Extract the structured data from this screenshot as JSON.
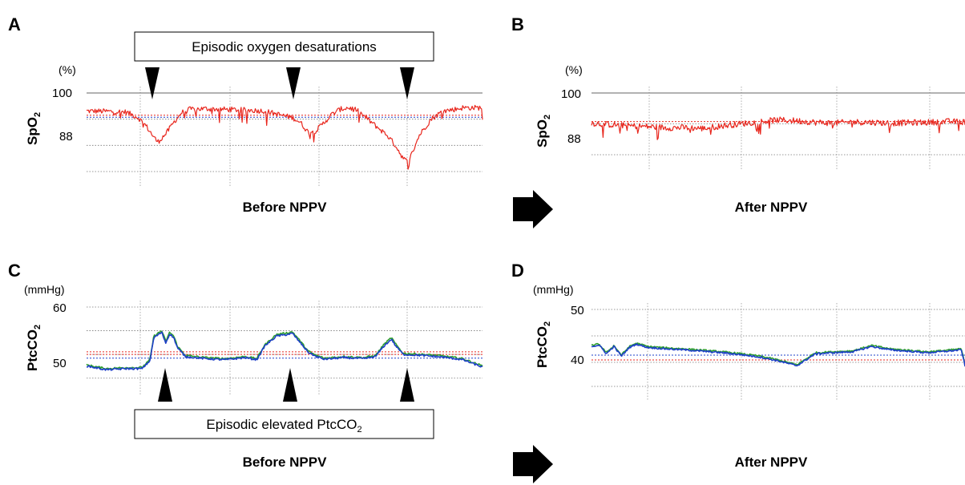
{
  "annotations": {
    "top_box": "Episodic oxygen desaturations",
    "bottom_box_main": "Episodic elevated PtcCO",
    "bottom_box_sub": "2"
  },
  "colors": {
    "spo2": "#e8261d",
    "ptcco2_main": "#2e9e2e",
    "ptcco2_secondary": "#1d3fc8",
    "red_ref": "#e8261d",
    "blue_ref": "#1d3fc8",
    "grid": "#888888"
  },
  "chart_data": [
    {
      "panel": "A",
      "type": "line",
      "caption": "Before NPPV",
      "unit": "(%)",
      "ylabel_main": "SpO",
      "ylabel_sub": "2",
      "yticks": [
        "100",
        "88"
      ],
      "ylim": [
        76,
        100
      ],
      "dotted_levels": [
        100,
        92,
        84,
        76
      ],
      "ref_levels": [
        {
          "color": "red",
          "value": 93.2
        },
        {
          "color": "blue",
          "value": 92.6
        }
      ],
      "arrowheads": [
        "down",
        "down",
        "down"
      ],
      "series": [
        {
          "color": "spo2",
          "x": [
            0,
            0.05,
            0.1,
            0.13,
            0.15,
            0.17,
            0.18,
            0.2,
            0.22,
            0.24,
            0.26,
            0.3,
            0.35,
            0.4,
            0.45,
            0.5,
            0.52,
            0.54,
            0.56,
            0.58,
            0.6,
            0.62,
            0.64,
            0.66,
            0.68,
            0.7,
            0.73,
            0.76,
            0.78,
            0.8,
            0.81,
            0.82,
            0.84,
            0.87,
            0.9,
            0.93,
            0.95,
            1
          ],
          "y": [
            94.5,
            94.4,
            94.2,
            92.5,
            90,
            86.5,
            85,
            87.5,
            91,
            94,
            95,
            95.2,
            95,
            94.8,
            94.5,
            93,
            92.5,
            91,
            88,
            88.5,
            91,
            93.5,
            95,
            95.5,
            95,
            93,
            90,
            87,
            84,
            80,
            79,
            81,
            87,
            92,
            94.5,
            95,
            95.5,
            95.5
          ]
        }
      ]
    },
    {
      "panel": "B",
      "type": "line",
      "caption": "After NPPV",
      "unit": "(%)",
      "ylabel_main": "SpO",
      "ylabel_sub": "2",
      "yticks": [
        "100",
        "88"
      ],
      "ylim": [
        84,
        100
      ],
      "dotted_levels": [
        100,
        92,
        84
      ],
      "ref_levels": [
        {
          "color": "red",
          "value": 92.6
        }
      ],
      "series": [
        {
          "color": "spo2",
          "x": [
            0,
            0.05,
            0.1,
            0.15,
            0.2,
            0.25,
            0.3,
            0.35,
            0.4,
            0.45,
            0.5,
            0.55,
            0.6,
            0.65,
            0.7,
            0.75,
            0.8,
            0.85,
            0.9,
            0.95,
            1
          ],
          "y": [
            92.2,
            91.8,
            91.5,
            91.3,
            91,
            91,
            90.8,
            91.5,
            92,
            92.6,
            93,
            92.8,
            92.4,
            92.2,
            92.5,
            92.4,
            92.2,
            92.3,
            92.4,
            92.6,
            92.5
          ]
        }
      ]
    },
    {
      "panel": "C",
      "type": "line",
      "caption": "Before NPPV",
      "unit": "(mmHg)",
      "ylabel_main": "PtcCO",
      "ylabel_sub": "2",
      "yticks": [
        "60",
        "50"
      ],
      "ylim": [
        46,
        60
      ],
      "dotted_levels": [
        60,
        55.5,
        51,
        46.5
      ],
      "ref_levels": [
        {
          "color": "red",
          "value": 51.5
        },
        {
          "color": "red",
          "value": 51
        },
        {
          "color": "blue",
          "value": 50.3
        }
      ],
      "arrowheads": [
        "up",
        "up",
        "up"
      ],
      "series": [
        {
          "name": "",
          "color": "ptcco2_main",
          "x": [
            0,
            0.05,
            0.1,
            0.14,
            0.16,
            0.17,
            0.19,
            0.2,
            0.21,
            0.22,
            0.23,
            0.25,
            0.3,
            0.35,
            0.4,
            0.43,
            0.45,
            0.48,
            0.5,
            0.52,
            0.54,
            0.56,
            0.58,
            0.6,
            0.65,
            0.7,
            0.73,
            0.75,
            0.77,
            0.78,
            0.8,
            0.85,
            0.9,
            0.95,
            1
          ],
          "y": [
            49,
            48.3,
            48.5,
            48.5,
            50,
            54.5,
            55.5,
            53.5,
            55.2,
            54.5,
            52.5,
            50.8,
            50.4,
            50.2,
            50.6,
            50.2,
            52.8,
            54.8,
            55,
            55.3,
            53.5,
            51.6,
            50.8,
            50.3,
            50.6,
            50.4,
            50.8,
            52.8,
            54.2,
            53,
            51.2,
            51,
            50.7,
            50.2,
            48.8
          ]
        },
        {
          "name": "",
          "color": "ptcco2_secondary",
          "x": [
            0,
            0.05,
            0.1,
            0.14,
            0.16,
            0.17,
            0.19,
            0.2,
            0.21,
            0.22,
            0.23,
            0.25,
            0.3,
            0.35,
            0.4,
            0.43,
            0.45,
            0.48,
            0.5,
            0.52,
            0.54,
            0.56,
            0.58,
            0.6,
            0.65,
            0.7,
            0.73,
            0.75,
            0.77,
            0.78,
            0.8,
            0.85,
            0.9,
            0.95,
            1
          ],
          "y": [
            48.8,
            48.1,
            48.3,
            48.3,
            49.8,
            54.2,
            55.2,
            53.2,
            54.9,
            54.2,
            52.2,
            50.6,
            50.2,
            50,
            50.4,
            50,
            52.6,
            54.5,
            54.7,
            55,
            53.2,
            51.4,
            50.6,
            50.1,
            50.4,
            50.2,
            50.6,
            52.5,
            53.9,
            52.7,
            51,
            50.8,
            50.5,
            50,
            48.6
          ]
        }
      ]
    },
    {
      "panel": "D",
      "type": "line",
      "caption": "After NPPV",
      "unit": "(mmHg)",
      "ylabel_main": "PtcCO",
      "ylabel_sub": "2",
      "yticks": [
        "50",
        "40"
      ],
      "ylim": [
        34,
        50
      ],
      "dotted_levels": [
        50,
        44.5,
        39,
        34
      ],
      "ref_levels": [
        {
          "color": "blue",
          "value": 40.5
        },
        {
          "color": "red",
          "value": 39.5
        }
      ],
      "series": [
        {
          "name": "",
          "color": "ptcco2_main",
          "x": [
            0,
            0.02,
            0.04,
            0.06,
            0.08,
            0.1,
            0.12,
            0.15,
            0.2,
            0.25,
            0.3,
            0.35,
            0.4,
            0.45,
            0.5,
            0.55,
            0.6,
            0.65,
            0.7,
            0.75,
            0.8,
            0.85,
            0.9,
            0.95,
            0.99,
            1
          ],
          "y": [
            42.5,
            42.8,
            41,
            42.5,
            40.5,
            42.2,
            43,
            42.3,
            42,
            41.8,
            41.5,
            41.2,
            40.8,
            40.3,
            39.5,
            38.5,
            41,
            41.2,
            41.4,
            42.5,
            41.8,
            41.5,
            41.2,
            41.5,
            41.8,
            38.5
          ]
        },
        {
          "name": "",
          "color": "ptcco2_secondary",
          "x": [
            0,
            0.02,
            0.04,
            0.06,
            0.08,
            0.1,
            0.12,
            0.15,
            0.2,
            0.25,
            0.3,
            0.35,
            0.4,
            0.45,
            0.5,
            0.55,
            0.6,
            0.65,
            0.7,
            0.75,
            0.8,
            0.85,
            0.9,
            0.95,
            0.99,
            1
          ],
          "y": [
            42.3,
            42.6,
            40.8,
            42.3,
            40.3,
            42,
            42.8,
            42.1,
            41.8,
            41.6,
            41.3,
            41,
            40.6,
            40.1,
            39.3,
            38.3,
            40.8,
            41,
            41.2,
            42.3,
            41.6,
            41.3,
            41,
            41.3,
            41.6,
            38.3
          ]
        }
      ]
    }
  ]
}
